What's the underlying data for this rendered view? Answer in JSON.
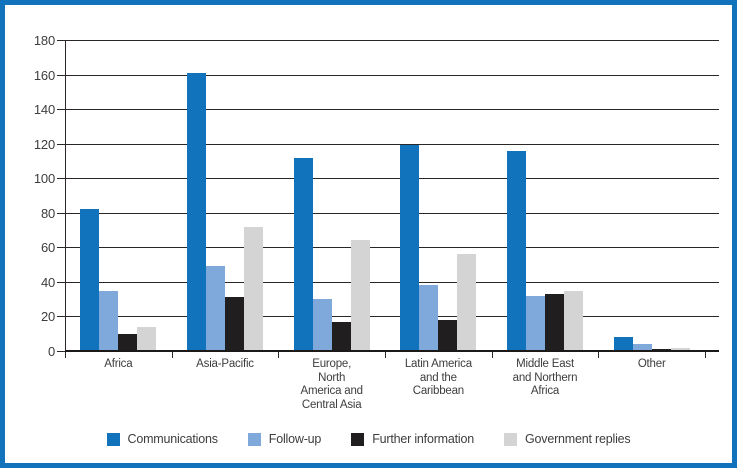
{
  "chart_data": {
    "type": "bar",
    "title": "",
    "xlabel": "",
    "ylabel": "",
    "ylim": [
      0,
      180
    ],
    "ytick_interval": 20,
    "yticks": [
      0,
      20,
      40,
      60,
      80,
      100,
      120,
      140,
      160,
      180
    ],
    "grid": "horizontal",
    "legend_position": "bottom",
    "categories": [
      "Africa",
      "Asia-Pacific",
      "Europe, North America and Central Asia",
      "Latin America and the Caribbean",
      "Middle East and Northern Africa",
      "Other"
    ],
    "category_label_lines": [
      [
        "Africa"
      ],
      [
        "Asia-Pacific"
      ],
      [
        "Europe,",
        "North",
        "America and",
        "Central Asia"
      ],
      [
        "Latin America",
        "and the",
        "Caribbean"
      ],
      [
        "Middle East",
        "and Northern",
        "Africa"
      ],
      [
        "Other"
      ]
    ],
    "series": [
      {
        "name": "Communications",
        "color": "#1173BB",
        "values": [
          82,
          161,
          112,
          119,
          116,
          8
        ]
      },
      {
        "name": "Follow-up",
        "color": "#7FA8DB",
        "values": [
          35,
          49,
          30,
          38,
          32,
          4
        ]
      },
      {
        "name": "Further information",
        "color": "#211E1F",
        "values": [
          10,
          31,
          17,
          18,
          33,
          1
        ]
      },
      {
        "name": "Government replies",
        "color": "#D4D4D4",
        "values": [
          14,
          72,
          64,
          56,
          35,
          2
        ]
      }
    ]
  },
  "frame": {
    "border_color": "#1173BB",
    "background": "#ffffff"
  },
  "axis": {
    "line_color": "#2b2727",
    "text_color": "#3d3d3d"
  }
}
